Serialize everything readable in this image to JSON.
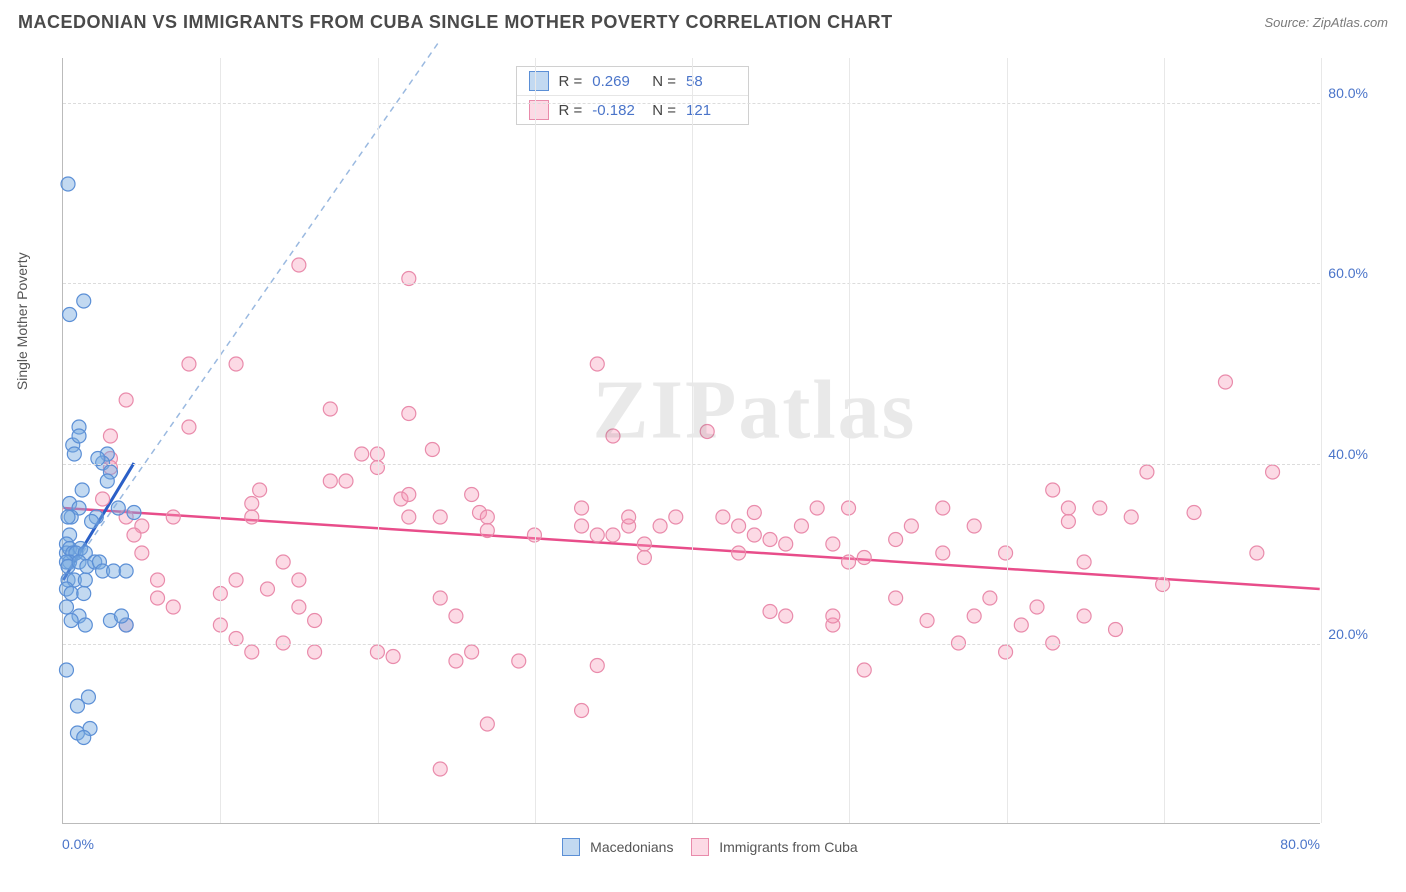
{
  "header": {
    "title": "MACEDONIAN VS IMMIGRANTS FROM CUBA SINGLE MOTHER POVERTY CORRELATION CHART",
    "source": "Source: ZipAtlas.com"
  },
  "axes": {
    "y_label": "Single Mother Poverty",
    "x_min": 0,
    "x_max": 80,
    "y_min": 0,
    "y_max": 85,
    "y_ticks": [
      20,
      40,
      60,
      80
    ],
    "x_ticks": [
      10,
      20,
      30,
      40,
      50,
      60,
      70,
      80
    ],
    "x_corner_label": "0.0%",
    "x_end_label": "80.0%",
    "y_tick_labels": [
      "20.0%",
      "40.0%",
      "60.0%",
      "80.0%"
    ]
  },
  "colors": {
    "blue_fill": "rgba(120,170,225,0.45)",
    "blue_stroke": "#5b8fd6",
    "pink_fill": "rgba(245,150,180,0.35)",
    "pink_stroke": "#e98bab",
    "blue_line": "#2a5fc7",
    "blue_dash": "#9ab9e0",
    "pink_line": "#e84d8a",
    "grid": "#dcdcdc",
    "text_axis": "#4a74c9"
  },
  "legend": {
    "series1": "Macedonians",
    "series2": "Immigrants from Cuba"
  },
  "stats": {
    "R_label": "R =",
    "N_label": "N =",
    "blue_R": "0.269",
    "blue_N": "58",
    "pink_R": "-0.182",
    "pink_N": "121"
  },
  "regression": {
    "blue_x1": 0,
    "blue_y1": 27,
    "blue_x2": 4.5,
    "blue_y2": 40,
    "blue_dash_x1": 0,
    "blue_dash_y1": 27,
    "blue_dash_x2": 24,
    "blue_dash_y2": 87,
    "pink_x1": 0,
    "pink_y1": 35,
    "pink_x2": 80,
    "pink_y2": 26
  },
  "watermark": "ZIPatlas",
  "series_blue": [
    [
      0.3,
      71
    ],
    [
      0.4,
      56.5
    ],
    [
      1.3,
      58
    ],
    [
      1.0,
      44
    ],
    [
      0.6,
      42
    ],
    [
      0.7,
      41
    ],
    [
      1.0,
      43
    ],
    [
      2.8,
      41
    ],
    [
      2.5,
      40
    ],
    [
      2.2,
      40.5
    ],
    [
      3.0,
      39
    ],
    [
      2.8,
      38
    ],
    [
      1.2,
      37
    ],
    [
      0.4,
      35.5
    ],
    [
      1.0,
      35
    ],
    [
      0.5,
      34
    ],
    [
      0.3,
      34
    ],
    [
      2.1,
      34
    ],
    [
      1.8,
      33.5
    ],
    [
      3.5,
      35
    ],
    [
      4.5,
      34.5
    ],
    [
      0.4,
      32
    ],
    [
      0.2,
      31
    ],
    [
      0.2,
      30
    ],
    [
      0.4,
      30.5
    ],
    [
      0.6,
      30
    ],
    [
      1.1,
      30.5
    ],
    [
      0.8,
      30
    ],
    [
      1.4,
      30
    ],
    [
      0.4,
      29
    ],
    [
      0.2,
      29
    ],
    [
      0.3,
      28.5
    ],
    [
      1.0,
      29
    ],
    [
      1.5,
      28.5
    ],
    [
      2.0,
      29
    ],
    [
      2.3,
      29
    ],
    [
      2.5,
      28
    ],
    [
      3.2,
      28
    ],
    [
      4.0,
      28
    ],
    [
      0.3,
      27
    ],
    [
      0.7,
      27
    ],
    [
      1.4,
      27
    ],
    [
      0.2,
      26
    ],
    [
      0.5,
      25.5
    ],
    [
      1.3,
      25.5
    ],
    [
      0.2,
      24
    ],
    [
      1.0,
      23
    ],
    [
      3.0,
      22.5
    ],
    [
      0.5,
      22.5
    ],
    [
      1.4,
      22
    ],
    [
      4.0,
      22
    ],
    [
      3.7,
      23
    ],
    [
      0.2,
      17
    ],
    [
      1.6,
      14
    ],
    [
      0.9,
      13
    ],
    [
      1.7,
      10.5
    ],
    [
      0.9,
      10
    ],
    [
      1.3,
      9.5
    ]
  ],
  "series_pink": [
    [
      15,
      62
    ],
    [
      22,
      60.5
    ],
    [
      8,
      51
    ],
    [
      11,
      51
    ],
    [
      17,
      46
    ],
    [
      4,
      47
    ],
    [
      22,
      45.5
    ],
    [
      8,
      44
    ],
    [
      23.5,
      41.5
    ],
    [
      34,
      51
    ],
    [
      35,
      43
    ],
    [
      3,
      43
    ],
    [
      19,
      41
    ],
    [
      20,
      39.5
    ],
    [
      20,
      41
    ],
    [
      17,
      38
    ],
    [
      18,
      38
    ],
    [
      12.5,
      37
    ],
    [
      12,
      35.5
    ],
    [
      12,
      34
    ],
    [
      7,
      34
    ],
    [
      5,
      33
    ],
    [
      21.5,
      36
    ],
    [
      22,
      34
    ],
    [
      22,
      36.5
    ],
    [
      24,
      34
    ],
    [
      26.5,
      34.5
    ],
    [
      27,
      34
    ],
    [
      26,
      36.5
    ],
    [
      27,
      32.5
    ],
    [
      30,
      32
    ],
    [
      33,
      35
    ],
    [
      33,
      33
    ],
    [
      34,
      32
    ],
    [
      36,
      33
    ],
    [
      36,
      34
    ],
    [
      35,
      32
    ],
    [
      37,
      29.5
    ],
    [
      37,
      31
    ],
    [
      38,
      33
    ],
    [
      39,
      34
    ],
    [
      41,
      43.5
    ],
    [
      42,
      34
    ],
    [
      43,
      33
    ],
    [
      43,
      30
    ],
    [
      44,
      34.5
    ],
    [
      44,
      32
    ],
    [
      45,
      31.5
    ],
    [
      45,
      23.5
    ],
    [
      46,
      31
    ],
    [
      46,
      23
    ],
    [
      47,
      33
    ],
    [
      48,
      35
    ],
    [
      49,
      31
    ],
    [
      49,
      22
    ],
    [
      49,
      23
    ],
    [
      50,
      35
    ],
    [
      50,
      29
    ],
    [
      51,
      29.5
    ],
    [
      51,
      17
    ],
    [
      53,
      25
    ],
    [
      53,
      31.5
    ],
    [
      54,
      33
    ],
    [
      55,
      22.5
    ],
    [
      56,
      35
    ],
    [
      56,
      30
    ],
    [
      57,
      20
    ],
    [
      58,
      23
    ],
    [
      58,
      33
    ],
    [
      59,
      25
    ],
    [
      60,
      30
    ],
    [
      60,
      19
    ],
    [
      61,
      22
    ],
    [
      62,
      24
    ],
    [
      63,
      37
    ],
    [
      63,
      20
    ],
    [
      64,
      33.5
    ],
    [
      64,
      35
    ],
    [
      65,
      23
    ],
    [
      65,
      29
    ],
    [
      66,
      35
    ],
    [
      67,
      21.5
    ],
    [
      68,
      34
    ],
    [
      69,
      39
    ],
    [
      70,
      26.5
    ],
    [
      72,
      34.5
    ],
    [
      74,
      49
    ],
    [
      76,
      30
    ],
    [
      77,
      39
    ],
    [
      3,
      39.5
    ],
    [
      3,
      40.5
    ],
    [
      2.5,
      36
    ],
    [
      4,
      34
    ],
    [
      4.5,
      32
    ],
    [
      5,
      30
    ],
    [
      6,
      27
    ],
    [
      6,
      25
    ],
    [
      7,
      24
    ],
    [
      4,
      22
    ],
    [
      10,
      22
    ],
    [
      10,
      25.5
    ],
    [
      11,
      27
    ],
    [
      11,
      20.5
    ],
    [
      12,
      19
    ],
    [
      14,
      20
    ],
    [
      13,
      26
    ],
    [
      14,
      29
    ],
    [
      15,
      27
    ],
    [
      15,
      24
    ],
    [
      16,
      19
    ],
    [
      16,
      22.5
    ],
    [
      24,
      25
    ],
    [
      25,
      23
    ],
    [
      25,
      18
    ],
    [
      26,
      19
    ],
    [
      27,
      11
    ],
    [
      29,
      18
    ],
    [
      20,
      19
    ],
    [
      21,
      18.5
    ],
    [
      24,
      6
    ],
    [
      33,
      12.5
    ],
    [
      34,
      17.5
    ]
  ]
}
